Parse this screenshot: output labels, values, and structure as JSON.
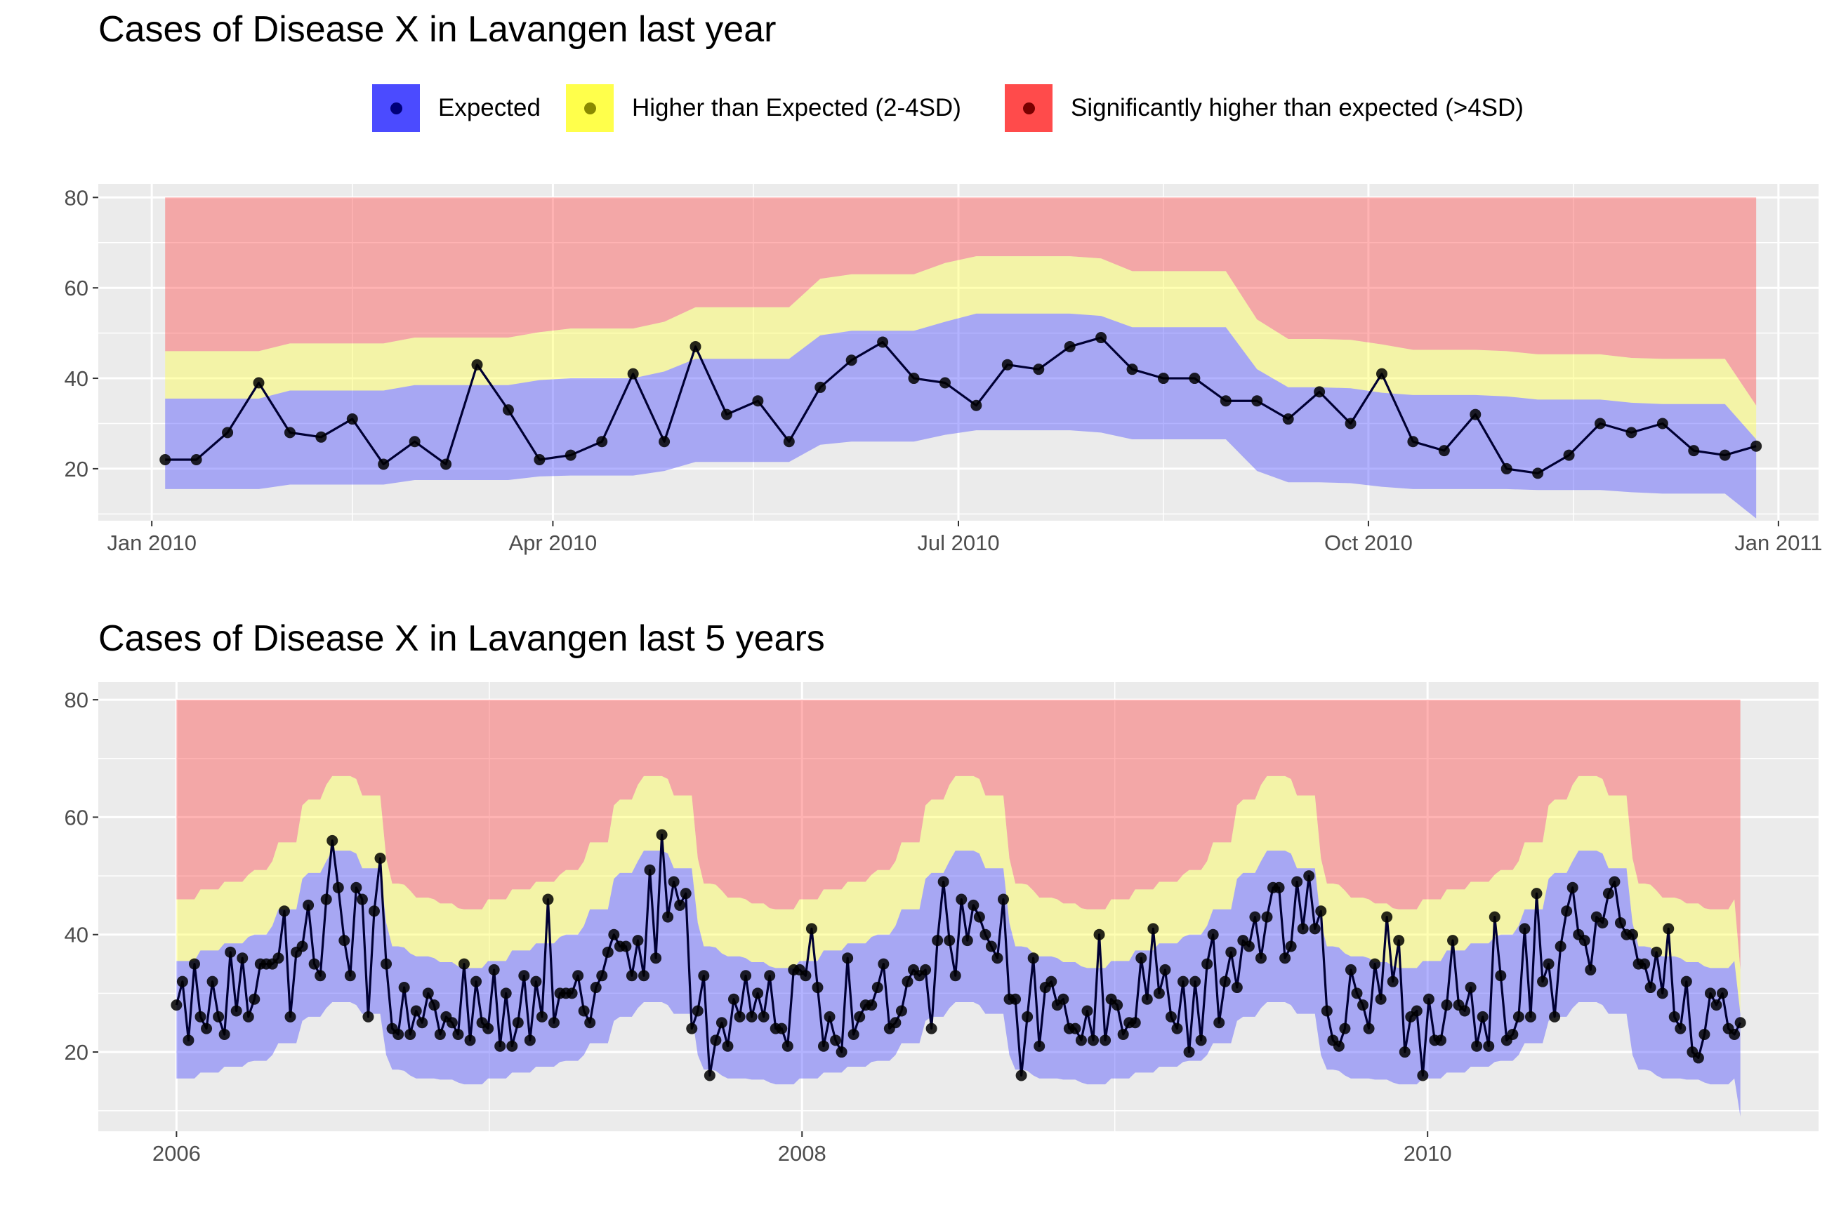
{
  "colors": {
    "expected": "#4b4bff",
    "higher": "#ffff4b",
    "significant": "#ff4b4b",
    "line": "#000033",
    "panel": "#ebebeb",
    "grid": "#ffffff"
  },
  "legend": {
    "items": [
      {
        "label": "Expected",
        "color": "#4b4bff",
        "dot": "#00007a"
      },
      {
        "label": "Higher than Expected (2-4SD)",
        "color": "#ffff4b",
        "dot": "#8a8a00"
      },
      {
        "label": "Significantly higher than expected (>4SD)",
        "color": "#ff4b4b",
        "dot": "#7a0000"
      }
    ]
  },
  "chart_data": [
    {
      "type": "area",
      "title": "Cases of Disease X in Lavangen last year",
      "xlabel": "",
      "ylabel": "",
      "x_axis": {
        "type": "date",
        "range": [
          "2009-12-20",
          "2011-01-10"
        ],
        "ticks": [
          {
            "date": "2010-01-01",
            "label": "Jan 2010"
          },
          {
            "date": "2010-04-01",
            "label": "Apr 2010"
          },
          {
            "date": "2010-07-01",
            "label": "Jul 2010"
          },
          {
            "date": "2010-10-01",
            "label": "Oct 2010"
          },
          {
            "date": "2011-01-01",
            "label": "Jan 2011"
          }
        ],
        "minor_ticks": [
          "2010-02-15",
          "2010-05-16",
          "2010-08-16",
          "2010-11-16"
        ]
      },
      "ylim": [
        8.5,
        83
      ],
      "y_ticks": [
        20,
        40,
        60,
        80
      ],
      "grid": true,
      "x": [
        "2010-01-04",
        "2010-01-11",
        "2010-01-18",
        "2010-01-25",
        "2010-02-01",
        "2010-02-08",
        "2010-02-15",
        "2010-02-22",
        "2010-03-01",
        "2010-03-08",
        "2010-03-15",
        "2010-03-22",
        "2010-03-29",
        "2010-04-05",
        "2010-04-12",
        "2010-04-19",
        "2010-04-26",
        "2010-05-03",
        "2010-05-10",
        "2010-05-17",
        "2010-05-24",
        "2010-05-31",
        "2010-06-07",
        "2010-06-14",
        "2010-06-21",
        "2010-06-28",
        "2010-07-05",
        "2010-07-12",
        "2010-07-19",
        "2010-07-26",
        "2010-08-02",
        "2010-08-09",
        "2010-08-16",
        "2010-08-23",
        "2010-08-30",
        "2010-09-06",
        "2010-09-13",
        "2010-09-20",
        "2010-09-27",
        "2010-10-04",
        "2010-10-11",
        "2010-10-18",
        "2010-10-25",
        "2010-11-01",
        "2010-11-08",
        "2010-11-15",
        "2010-11-22",
        "2010-11-29",
        "2010-12-06",
        "2010-12-13",
        "2010-12-20",
        "2010-12-27"
      ],
      "series": [
        {
          "name": "cases",
          "values": [
            22,
            22,
            28,
            39,
            28,
            27,
            31,
            21,
            26,
            21,
            43,
            33,
            22,
            23,
            26,
            41,
            26,
            47,
            32,
            35,
            26,
            38,
            44,
            48,
            40,
            39,
            34,
            43,
            42,
            47,
            49,
            42,
            40,
            40,
            35,
            35,
            31,
            37,
            30,
            41,
            26,
            24,
            32,
            20,
            19,
            23,
            30,
            28,
            30,
            24,
            23,
            25
          ]
        },
        {
          "name": "expected_low",
          "values": [
            15.5,
            15.5,
            15.5,
            15.5,
            16.5,
            16.5,
            16.5,
            16.5,
            17.5,
            17.5,
            17.5,
            17.5,
            18.3,
            18.5,
            18.5,
            18.5,
            19.5,
            21.5,
            21.5,
            21.5,
            21.5,
            25.3,
            26,
            26,
            26,
            27.5,
            28.5,
            28.5,
            28.5,
            28.5,
            28,
            26.5,
            26.5,
            26.5,
            26.5,
            19.5,
            17,
            17,
            16.8,
            16,
            15.5,
            15.5,
            15.5,
            15.5,
            15.3,
            15.3,
            15.3,
            14.8,
            14.5,
            14.5,
            14.5,
            9
          ]
        },
        {
          "name": "expected_high",
          "values": [
            35.5,
            35.5,
            35.5,
            35.5,
            37.3,
            37.3,
            37.3,
            37.3,
            38.5,
            38.5,
            38.5,
            38.5,
            39.6,
            40,
            40,
            40,
            41.5,
            44.3,
            44.3,
            44.3,
            44.3,
            49.5,
            50.5,
            50.5,
            50.5,
            52.5,
            54.3,
            54.3,
            54.3,
            54.3,
            53.8,
            51.3,
            51.3,
            51.3,
            51.3,
            42,
            38,
            38,
            37.8,
            36.8,
            36.3,
            36.3,
            36.3,
            36,
            35.3,
            35.3,
            35.3,
            34.6,
            34.3,
            34.3,
            34.3,
            26.5
          ]
        },
        {
          "name": "higher_high",
          "values": [
            46,
            46,
            46,
            46,
            47.7,
            47.7,
            47.7,
            47.7,
            49,
            49,
            49,
            49,
            50.2,
            51,
            51,
            51,
            52.5,
            55.7,
            55.7,
            55.7,
            55.7,
            62,
            63,
            63,
            63,
            65.5,
            67,
            67,
            67,
            67,
            66.5,
            63.7,
            63.7,
            63.7,
            63.7,
            53,
            48.7,
            48.7,
            48.5,
            47.5,
            46.3,
            46.3,
            46.3,
            46,
            45.3,
            45.3,
            45.3,
            44.5,
            44.3,
            44.3,
            44.3,
            34
          ]
        },
        {
          "name": "significant_high",
          "values": [
            80,
            80,
            80,
            80,
            80,
            80,
            80,
            80,
            80,
            80,
            80,
            80,
            80,
            80,
            80,
            80,
            80,
            80,
            80,
            80,
            80,
            80,
            80,
            80,
            80,
            80,
            80,
            80,
            80,
            80,
            80,
            80,
            80,
            80,
            80,
            80,
            80,
            80,
            80,
            80,
            80,
            80,
            80,
            80,
            80,
            80,
            80,
            80,
            80,
            80,
            80,
            80
          ]
        }
      ]
    },
    {
      "type": "area",
      "title": "Cases of Disease X in Lavangen last 5 years",
      "xlabel": "",
      "ylabel": "",
      "x_axis": {
        "type": "time",
        "range": [
          2005.75,
          2011.25
        ],
        "ticks": [
          {
            "value": 2006,
            "label": "2006"
          },
          {
            "value": 2008,
            "label": "2008"
          },
          {
            "value": 2010,
            "label": "2010"
          }
        ],
        "minor_ticks": [
          2007,
          2009
        ]
      },
      "ylim": [
        6.5,
        83
      ],
      "y_ticks": [
        20,
        40,
        60,
        80
      ],
      "grid": true,
      "x_start": 2006.0,
      "x_end": 2011.0,
      "series": [
        {
          "name": "cases",
          "values": [
            28,
            32,
            22,
            35,
            26,
            24,
            32,
            26,
            23,
            37,
            27,
            36,
            26,
            29,
            35,
            35,
            35,
            36,
            44,
            26,
            37,
            38,
            45,
            35,
            33,
            46,
            56,
            48,
            39,
            33,
            48,
            46,
            26,
            44,
            53,
            35,
            24,
            23,
            31,
            23,
            27,
            25,
            30,
            28,
            23,
            26,
            25,
            23,
            35,
            22,
            32,
            25,
            24,
            34,
            21,
            30,
            21,
            25,
            33,
            22,
            32,
            26,
            46,
            25,
            30,
            30,
            30,
            33,
            27,
            25,
            31,
            33,
            37,
            40,
            38,
            38,
            33,
            39,
            33,
            51,
            36,
            57,
            43,
            49,
            45,
            47,
            24,
            27,
            33,
            16,
            22,
            25,
            21,
            29,
            26,
            33,
            26,
            30,
            26,
            33,
            24,
            24,
            21,
            34,
            34,
            33,
            41,
            31,
            21,
            26,
            22,
            20,
            36,
            23,
            26,
            28,
            28,
            31,
            35,
            24,
            25,
            27,
            32,
            34,
            33,
            34,
            24,
            39,
            49,
            39,
            33,
            46,
            39,
            45,
            43,
            40,
            38,
            36,
            46,
            29,
            29,
            16,
            26,
            36,
            21,
            31,
            32,
            28,
            29,
            24,
            24,
            22,
            27,
            22,
            40,
            22,
            29,
            28,
            23,
            25,
            25,
            36,
            29,
            41,
            30,
            34,
            26,
            24,
            32,
            20,
            32,
            22,
            35,
            40,
            25,
            32,
            37,
            31,
            39,
            38,
            43,
            36,
            43,
            48,
            48,
            36,
            38,
            49,
            41,
            50,
            41,
            44,
            27,
            22,
            21,
            24,
            34,
            30,
            28,
            24,
            35,
            29,
            43,
            32,
            39,
            20,
            26,
            27,
            16,
            29,
            22,
            22,
            28,
            39,
            28,
            27,
            31,
            21,
            26,
            21,
            43,
            33,
            22,
            23,
            26,
            41,
            26,
            47,
            32,
            35,
            26,
            38,
            44,
            48,
            40,
            39,
            34,
            43,
            42,
            47,
            49,
            42,
            40,
            40,
            35,
            35,
            31,
            37,
            30,
            41,
            26,
            24,
            32,
            20,
            19,
            23,
            30,
            28,
            30,
            24,
            23,
            25
          ]
        }
      ],
      "band_profile": {
        "description_of_values": "expected_low, expected_high, higher_high repeat each year (same as last-year panel)",
        "expected_low": [
          15.5,
          15.5,
          15.5,
          15.5,
          16.5,
          16.5,
          16.5,
          16.5,
          17.5,
          17.5,
          17.5,
          17.5,
          18.3,
          18.5,
          18.5,
          18.5,
          19.5,
          21.5,
          21.5,
          21.5,
          21.5,
          25.3,
          26,
          26,
          26,
          27.5,
          28.5,
          28.5,
          28.5,
          28.5,
          28,
          26.5,
          26.5,
          26.5,
          26.5,
          19.5,
          17,
          17,
          16.8,
          16,
          15.5,
          15.5,
          15.5,
          15.5,
          15.3,
          15.3,
          15.3,
          14.8,
          14.5,
          14.5,
          14.5,
          14.5
        ],
        "expected_high": [
          35.5,
          35.5,
          35.5,
          35.5,
          37.3,
          37.3,
          37.3,
          37.3,
          38.5,
          38.5,
          38.5,
          38.5,
          39.6,
          40,
          40,
          40,
          41.5,
          44.3,
          44.3,
          44.3,
          44.3,
          49.5,
          50.5,
          50.5,
          50.5,
          52.5,
          54.3,
          54.3,
          54.3,
          54.3,
          53.8,
          51.3,
          51.3,
          51.3,
          51.3,
          42,
          38,
          38,
          37.8,
          36.8,
          36.3,
          36.3,
          36.3,
          36,
          35.3,
          35.3,
          35.3,
          34.6,
          34.3,
          34.3,
          34.3,
          34.3
        ],
        "higher_high": [
          46,
          46,
          46,
          46,
          47.7,
          47.7,
          47.7,
          47.7,
          49,
          49,
          49,
          49,
          50.2,
          51,
          51,
          51,
          52.5,
          55.7,
          55.7,
          55.7,
          55.7,
          62,
          63,
          63,
          63,
          65.5,
          67,
          67,
          67,
          67,
          66.5,
          63.7,
          63.7,
          63.7,
          63.7,
          53,
          48.7,
          48.7,
          48.5,
          47.5,
          46.3,
          46.3,
          46.3,
          46,
          45.3,
          45.3,
          45.3,
          44.5,
          44.3,
          44.3,
          44.3,
          44.3
        ],
        "final_point": {
          "expected_low": 9,
          "expected_high": 26.5,
          "higher_high": 34
        },
        "significant_high": 80
      }
    }
  ]
}
